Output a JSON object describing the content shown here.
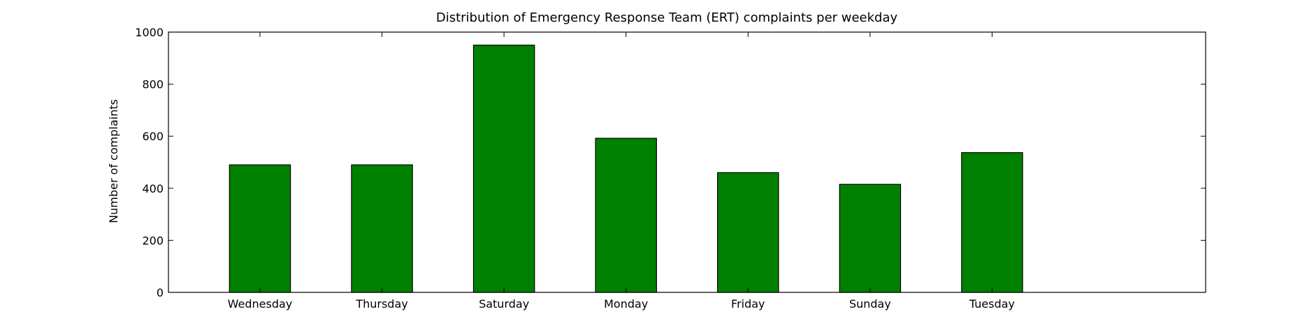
{
  "chart_data": {
    "type": "bar",
    "title": "Distribution of  Emergency Response Team (ERT) complaints per weekday",
    "xlabel": "",
    "ylabel": "Number of complaints",
    "categories": [
      "Wednesday",
      "Thursday",
      "Saturday",
      "Monday",
      "Friday",
      "Sunday",
      "Tuesday"
    ],
    "values": [
      490,
      490,
      950,
      592,
      460,
      415,
      537
    ],
    "ylim": [
      0,
      1000
    ],
    "yticks": [
      0,
      200,
      400,
      600,
      800,
      1000
    ],
    "grid": false,
    "bar_color": "#008000",
    "edge_color": "#000000"
  }
}
